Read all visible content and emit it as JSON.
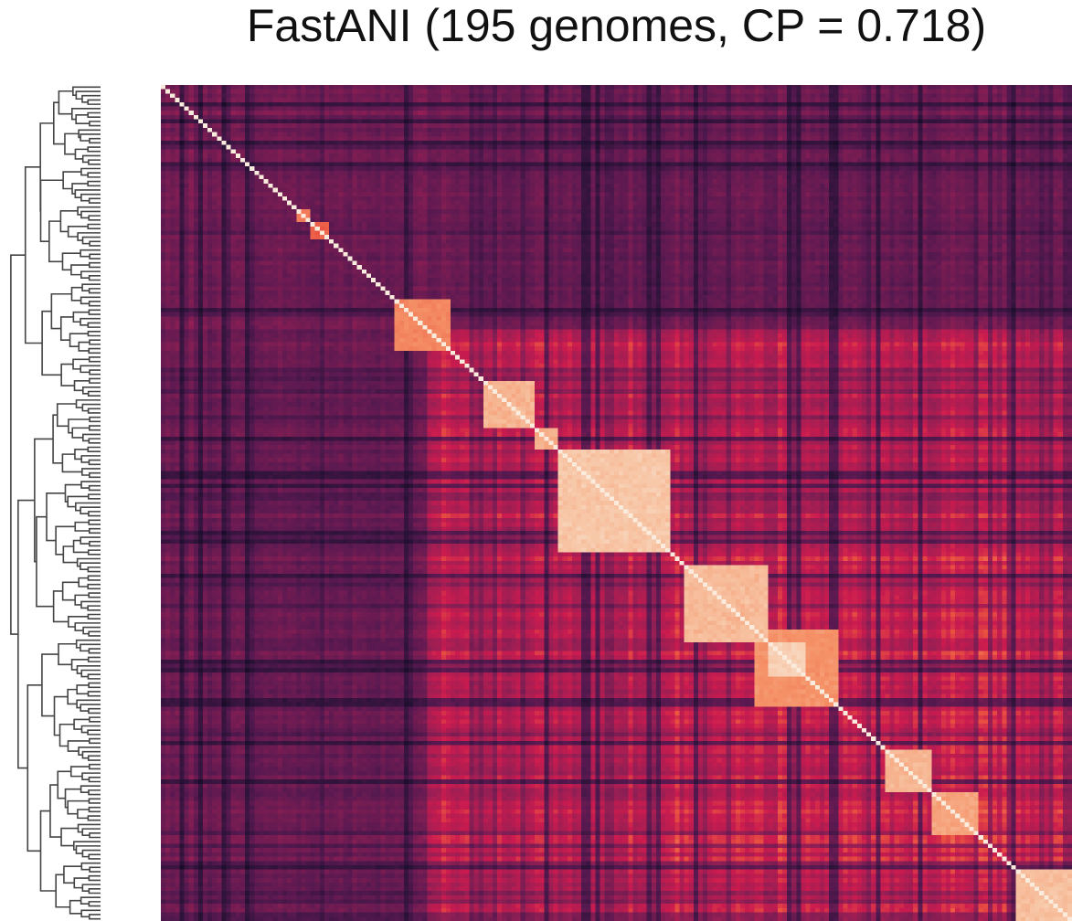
{
  "chart_data": {
    "type": "heatmap",
    "title": "FastANI (195 genomes, CP = 0.718)",
    "n_genomes": 195,
    "cophenetic_correlation": 0.718,
    "colormap": "rocket",
    "colorbar": false,
    "tick_labels": false,
    "dendrogram": "rows, left",
    "dendrogram_color": "#444444",
    "diagonal_color": "#faebdd",
    "value_range": [
      0,
      1
    ],
    "clusters": [
      {
        "start": 29,
        "end": 32,
        "similarity": 0.8
      },
      {
        "start": 32,
        "end": 36,
        "similarity": 0.74
      },
      {
        "start": 50,
        "end": 62,
        "similarity": 0.82
      },
      {
        "start": 69,
        "end": 80,
        "similarity": 0.9
      },
      {
        "start": 80,
        "end": 85,
        "similarity": 0.88
      },
      {
        "start": 85,
        "end": 109,
        "similarity": 0.93
      },
      {
        "start": 112,
        "end": 130,
        "similarity": 0.91
      },
      {
        "start": 130,
        "end": 138,
        "similarity": 0.95
      },
      {
        "start": 127,
        "end": 145,
        "similarity": 0.84
      },
      {
        "start": 155,
        "end": 165,
        "similarity": 0.9
      },
      {
        "start": 165,
        "end": 175,
        "similarity": 0.87
      },
      {
        "start": 183,
        "end": 195,
        "similarity": 0.92
      }
    ],
    "blocks": [
      {
        "start": 0,
        "end": 57,
        "similarity": 0.38
      },
      {
        "start": 57,
        "end": 195,
        "similarity": 0.58
      },
      {
        "start": 103,
        "end": 195,
        "similarity": 0.62
      },
      {
        "start": 57,
        "end": 103,
        "similarity": 0.6
      }
    ]
  }
}
